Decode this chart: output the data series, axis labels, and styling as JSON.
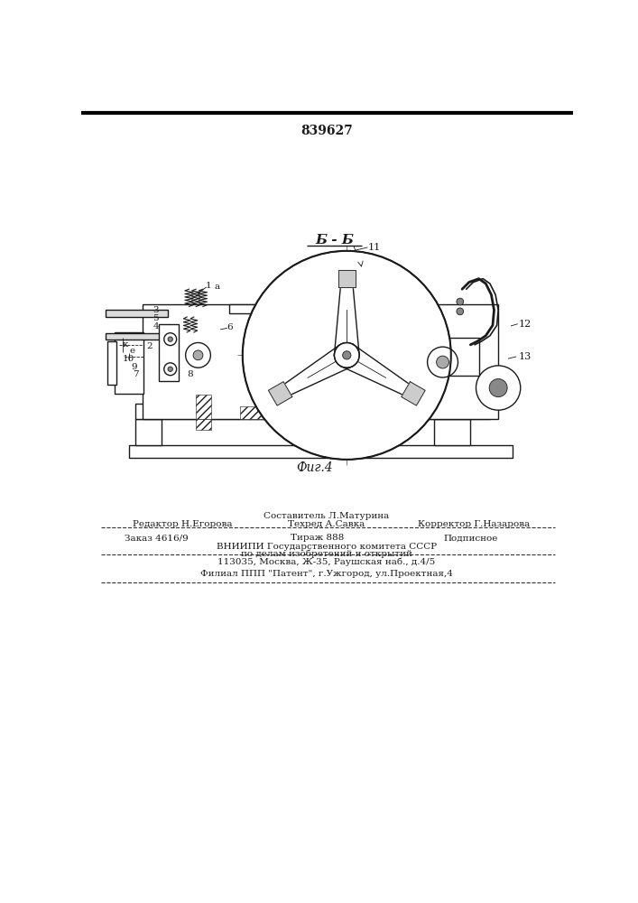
{
  "patent_number": "839627",
  "section_label": "Б - Б",
  "figure_label": "Фиг.4",
  "composer_line": "Составитель Л.Матурина",
  "editor_label": "Редактор Н.Егорова",
  "techred_label": "Техред А.Савка",
  "corrector_label": "Корректор Г.Назарова",
  "order_text": "Заказ 4616/9",
  "tirazh_text": "Тираж 888",
  "podpisnoe_text": "Подписное",
  "vniipii_line1": "ВНИИПИ Государственного комитета СССР",
  "vniipii_line2": "по делам изобретений и открытий",
  "vniipii_line3": "113035, Москва, Ж-35, Раушская наб., д.4/5",
  "filial_line": "Филиал ППП \"Патент\", г.Ужгород, ул.Проектная,4",
  "bg_color": "#ffffff",
  "line_color": "#1a1a1a"
}
